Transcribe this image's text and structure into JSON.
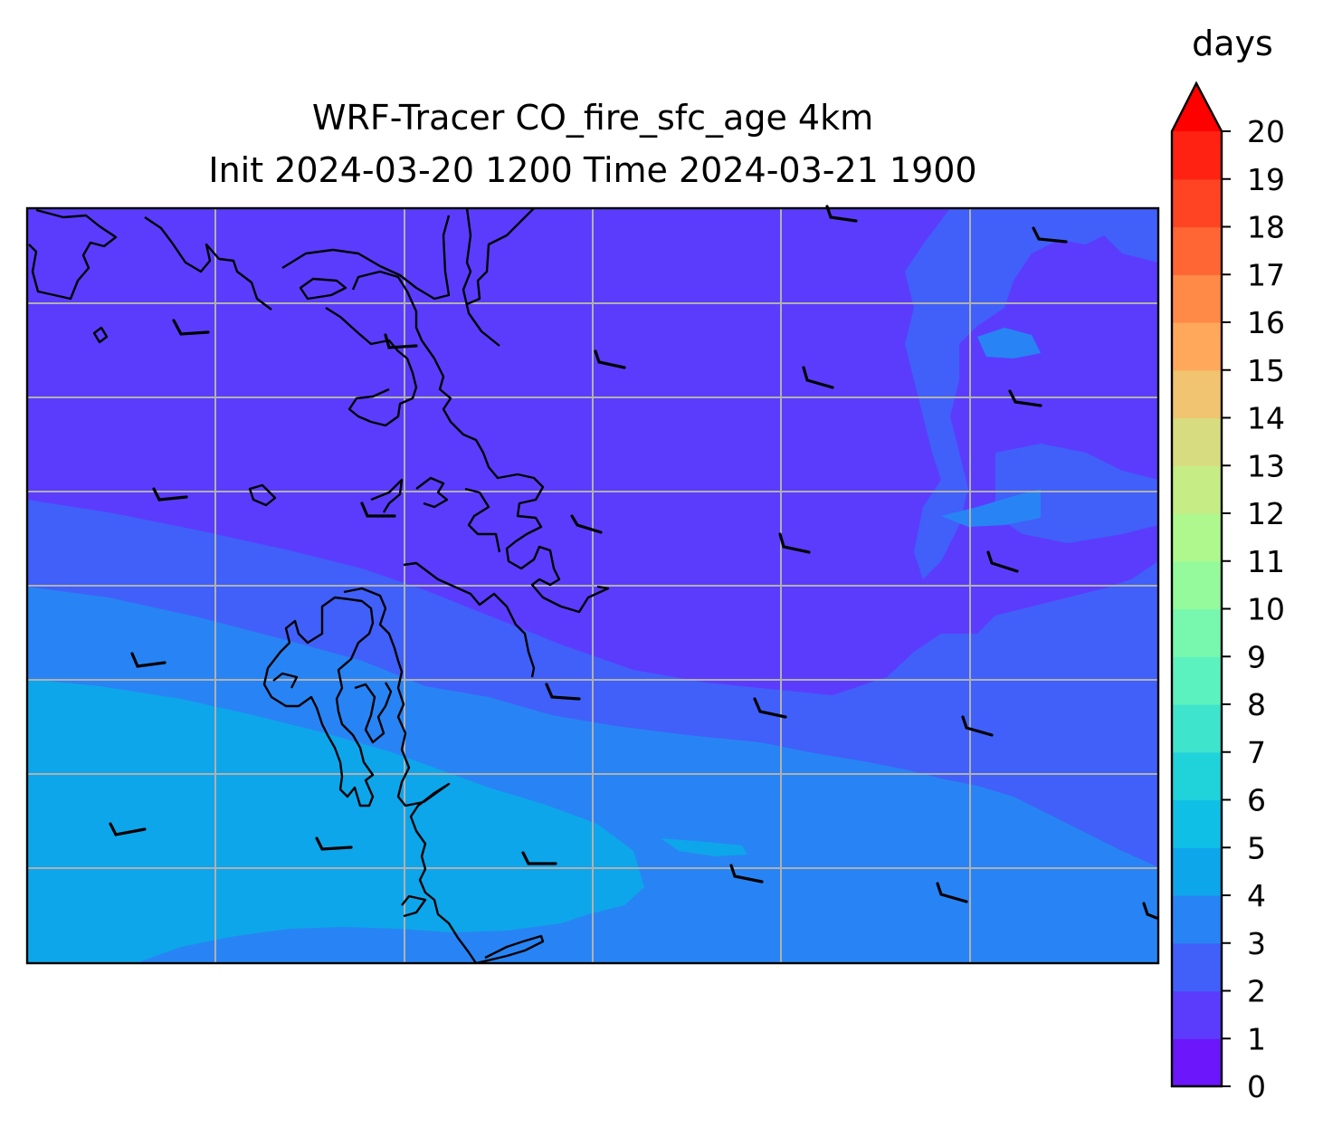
{
  "title": {
    "line1": "WRF-Tracer CO_fire_sfc_age 4km",
    "line2": "Init 2024-03-20 1200 Time 2024-03-21 1900"
  },
  "colorbar": {
    "units": "days",
    "levels": [
      0,
      1,
      2,
      3,
      4,
      5,
      6,
      7,
      8,
      9,
      10,
      11,
      12,
      13,
      14,
      15,
      16,
      17,
      18,
      19,
      20
    ],
    "colors": [
      "#6c16fb",
      "#5b3cfd",
      "#4060f9",
      "#2884f4",
      "#0ea6ea",
      "#10bfe6",
      "#20d2da",
      "#3fe4cc",
      "#5cf2c0",
      "#78f8ae",
      "#94fa9c",
      "#aef88e",
      "#c6ec86",
      "#d8dc80",
      "#f0c470",
      "#ffa85c",
      "#ff8a48",
      "#ff6634",
      "#ff4424",
      "#ff2212"
    ],
    "extend": "max",
    "extend_color": "#ff0000"
  },
  "map": {
    "field": "CO_fire_sfc_age",
    "gridlines": true,
    "wind_barbs": true,
    "coastlines": true
  }
}
